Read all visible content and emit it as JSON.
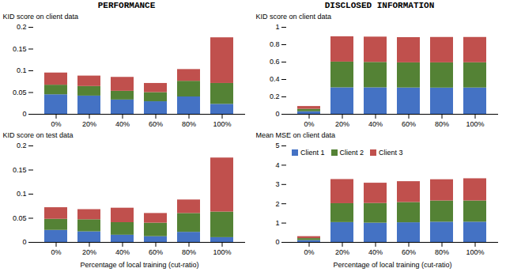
{
  "chart_data": [
    {
      "type": "bar",
      "stacked": true,
      "title": "PERFORMANCE",
      "ylabel": "KID score on client data",
      "categories": [
        "0%",
        "20%",
        "40%",
        "60%",
        "80%",
        "100%"
      ],
      "series": [
        {
          "name": "Client 1",
          "color": "#4472C4",
          "values": [
            0.045,
            0.042,
            0.033,
            0.029,
            0.04,
            0.023
          ]
        },
        {
          "name": "Client 2",
          "color": "#548235",
          "values": [
            0.022,
            0.022,
            0.02,
            0.021,
            0.036,
            0.048
          ]
        },
        {
          "name": "Client 3",
          "color": "#C0504D",
          "values": [
            0.028,
            0.024,
            0.032,
            0.021,
            0.027,
            0.105
          ]
        }
      ],
      "ylim": [
        0,
        0.2
      ],
      "yticks": [
        0,
        0.05,
        0.1,
        0.15,
        0.2
      ],
      "grid": false
    },
    {
      "type": "bar",
      "stacked": true,
      "title": "DISCLOSED INFORMATION",
      "ylabel": "KID score on client data",
      "categories": [
        "0%",
        "20%",
        "40%",
        "60%",
        "80%",
        "100%"
      ],
      "series": [
        {
          "name": "Client 1",
          "color": "#4472C4",
          "values": [
            0.03,
            0.305,
            0.305,
            0.303,
            0.302,
            0.303
          ]
        },
        {
          "name": "Client 2",
          "color": "#548235",
          "values": [
            0.028,
            0.296,
            0.292,
            0.289,
            0.29,
            0.29
          ]
        },
        {
          "name": "Client 3",
          "color": "#C0504D",
          "values": [
            0.032,
            0.291,
            0.291,
            0.29,
            0.292,
            0.291
          ]
        }
      ],
      "ylim": [
        0,
        1
      ],
      "yticks": [
        0,
        0.2,
        0.4,
        0.6,
        0.8,
        1
      ],
      "grid": false
    },
    {
      "type": "bar",
      "stacked": true,
      "ylabel": "KID score on test data",
      "xlabel": "Percentage of local training (cut-ratio)",
      "categories": [
        "0%",
        "20%",
        "40%",
        "60%",
        "80%",
        "100%"
      ],
      "series": [
        {
          "name": "Client 1",
          "color": "#4472C4",
          "values": [
            0.025,
            0.022,
            0.015,
            0.012,
            0.021,
            0.01
          ]
        },
        {
          "name": "Client 2",
          "color": "#548235",
          "values": [
            0.023,
            0.025,
            0.026,
            0.028,
            0.039,
            0.053
          ]
        },
        {
          "name": "Client 3",
          "color": "#C0504D",
          "values": [
            0.024,
            0.021,
            0.03,
            0.02,
            0.028,
            0.112
          ]
        }
      ],
      "ylim": [
        0,
        0.2
      ],
      "yticks": [
        0,
        0.05,
        0.1,
        0.15,
        0.2
      ],
      "grid": false
    },
    {
      "type": "bar",
      "stacked": true,
      "ylabel": "Mean MSE on client data",
      "xlabel": "Percentage of local training (cut-ratio)",
      "categories": [
        "0%",
        "20%",
        "40%",
        "60%",
        "80%",
        "100%"
      ],
      "series": [
        {
          "name": "Client 1",
          "color": "#4472C4",
          "values": [
            0.1,
            1.03,
            1.0,
            1.02,
            1.05,
            1.05
          ]
        },
        {
          "name": "Client 2",
          "color": "#548235",
          "values": [
            0.1,
            0.98,
            1.02,
            1.05,
            1.1,
            1.1
          ]
        },
        {
          "name": "Client 3",
          "color": "#C0504D",
          "values": [
            0.1,
            1.25,
            1.05,
            1.08,
            1.1,
            1.15
          ]
        }
      ],
      "ylim": [
        0,
        5
      ],
      "yticks": [
        0,
        1,
        2,
        3,
        4,
        5
      ],
      "grid": false,
      "legend": "upper left"
    }
  ]
}
